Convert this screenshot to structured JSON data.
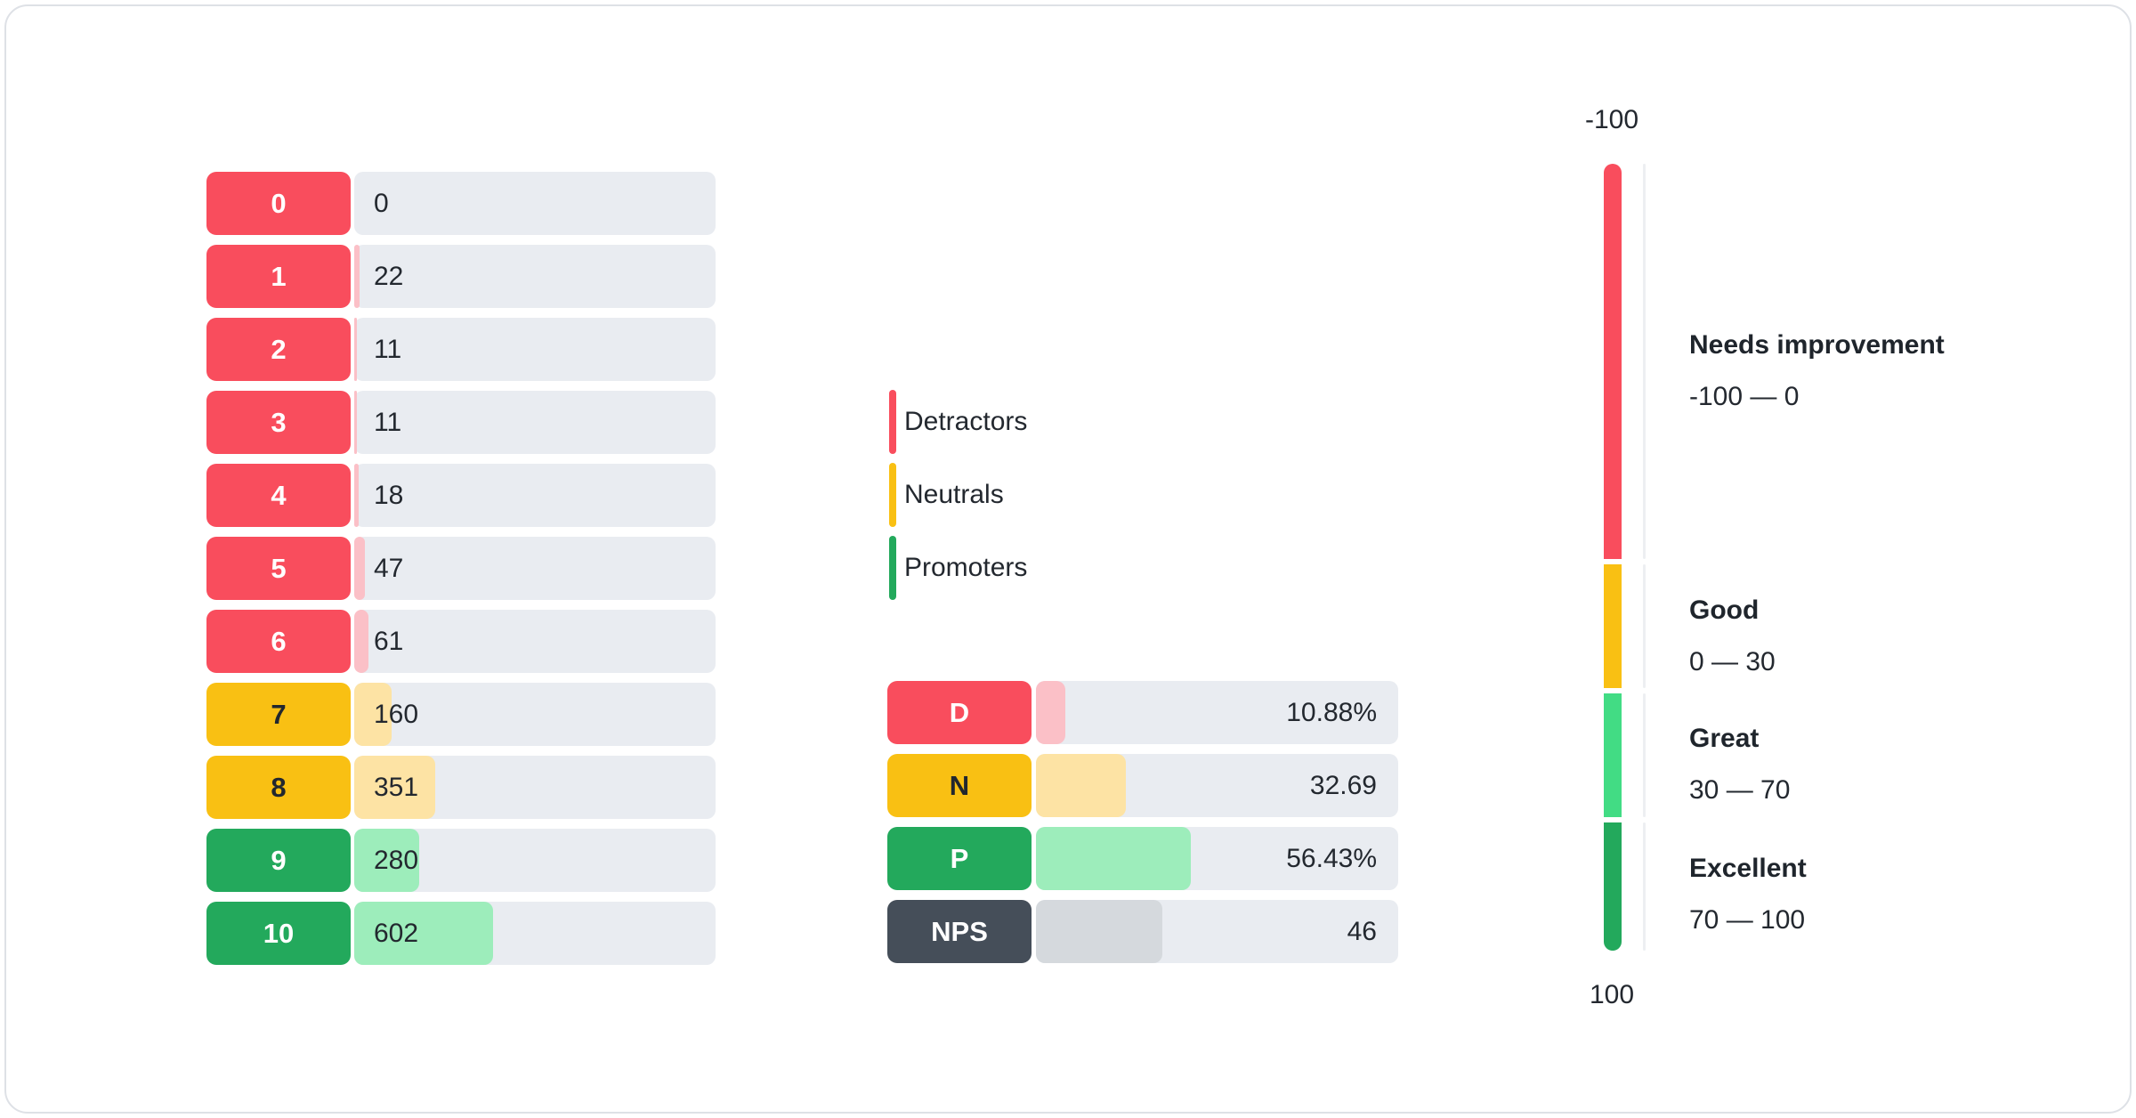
{
  "colors": {
    "detractor": "#F94D5D",
    "detractor_light": "#FBC0C7",
    "neutral": "#F9C013",
    "neutral_light": "#FDE3A4",
    "promoter": "#23A95C",
    "promoter_light": "#9DEDBB",
    "nps": "#454E59",
    "nps_light": "#D5D9DD",
    "great_zone": "#42DC84",
    "track": "#E9ECF1",
    "separator": "#EDEFF2",
    "card_border": "#DEE1E6",
    "text": "#23282F"
  },
  "scores": {
    "rows": [
      {
        "label": "0",
        "value": 0,
        "group": "detractor"
      },
      {
        "label": "1",
        "value": 22,
        "group": "detractor"
      },
      {
        "label": "2",
        "value": 11,
        "group": "detractor"
      },
      {
        "label": "3",
        "value": 11,
        "group": "detractor"
      },
      {
        "label": "4",
        "value": 18,
        "group": "detractor"
      },
      {
        "label": "5",
        "value": 47,
        "group": "detractor"
      },
      {
        "label": "6",
        "value": 61,
        "group": "detractor"
      },
      {
        "label": "7",
        "value": 160,
        "group": "neutral"
      },
      {
        "label": "8",
        "value": 351,
        "group": "neutral"
      },
      {
        "label": "9",
        "value": 280,
        "group": "promoter"
      },
      {
        "label": "10",
        "value": 602,
        "group": "promoter"
      }
    ]
  },
  "legend": {
    "items": [
      {
        "label": "Detractors",
        "group": "detractor"
      },
      {
        "label": "Neutrals",
        "group": "neutral"
      },
      {
        "label": "Promoters",
        "group": "promoter"
      }
    ]
  },
  "summary": {
    "rows": [
      {
        "label": "D",
        "value": 10.88,
        "value_label": "10.88%",
        "group": "detractor"
      },
      {
        "label": "N",
        "value": 32.69,
        "value_label": "32.69",
        "group": "neutral"
      },
      {
        "label": "P",
        "value": 56.43,
        "value_label": "56.43%",
        "group": "promoter"
      },
      {
        "label": "NPS",
        "value": 46,
        "value_label": "46",
        "group": "nps"
      }
    ]
  },
  "gauge": {
    "top_label": "-100",
    "bottom_label": "100",
    "zones": [
      {
        "title": "Needs improvement",
        "range": "-100 — 0",
        "group": "detractor"
      },
      {
        "title": "Good",
        "range": "0 — 30",
        "group": "neutral"
      },
      {
        "title": "Great",
        "range": "30 — 70",
        "group": "great_zone"
      },
      {
        "title": "Excellent",
        "range": "70 — 100",
        "group": "promoter"
      }
    ]
  },
  "chart_data": [
    {
      "type": "bar",
      "title": "NPS score distribution",
      "orientation": "horizontal",
      "categories": [
        "0",
        "1",
        "2",
        "3",
        "4",
        "5",
        "6",
        "7",
        "8",
        "9",
        "10"
      ],
      "values": [
        0,
        22,
        11,
        11,
        18,
        47,
        61,
        160,
        351,
        280,
        602
      ],
      "groups": [
        "detractor",
        "detractor",
        "detractor",
        "detractor",
        "detractor",
        "detractor",
        "detractor",
        "neutral",
        "neutral",
        "promoter",
        "promoter"
      ],
      "legend_position": "right",
      "legend": [
        "Detractors",
        "Neutrals",
        "Promoters"
      ]
    },
    {
      "type": "bar",
      "title": "NPS summary",
      "orientation": "horizontal",
      "categories": [
        "D",
        "N",
        "P",
        "NPS"
      ],
      "values": [
        10.88,
        32.69,
        56.43,
        46
      ],
      "value_labels": [
        "10.88%",
        "32.69",
        "56.43%",
        "46"
      ]
    },
    {
      "type": "gauge",
      "title": "NPS scale",
      "axis_range": [
        -100,
        100
      ],
      "axis_labels": [
        "-100",
        "100"
      ],
      "zones": [
        {
          "label": "Needs improvement",
          "from": -100,
          "to": 0
        },
        {
          "label": "Good",
          "from": 0,
          "to": 30
        },
        {
          "label": "Great",
          "from": 30,
          "to": 70
        },
        {
          "label": "Excellent",
          "from": 70,
          "to": 100
        }
      ]
    }
  ]
}
